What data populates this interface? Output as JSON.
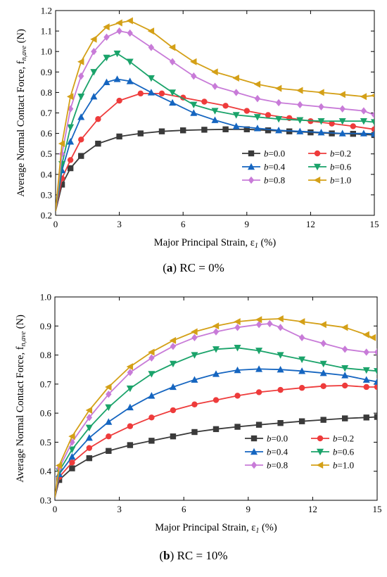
{
  "figure": {
    "panels": [
      {
        "letter": "a",
        "caption_text": "RC = 0%",
        "ylabel": "Average Normal Contact Force, f",
        "ylabel_sub": "n,ave",
        "ylabel_unit": "(N)",
        "xlabel": "Major Principal Strain, ε",
        "xlabel_sub": "1",
        "xlabel_unit": "(%)"
      },
      {
        "letter": "b",
        "caption_text": "RC = 10%",
        "ylabel": "Average Normal Contact Force, f",
        "ylabel_sub": "n,ave",
        "ylabel_unit": "(N)",
        "xlabel": "Major Principal Strain, ε",
        "xlabel_sub": "1",
        "xlabel_unit": "(%)"
      }
    ]
  },
  "chart_data": [
    {
      "type": "line",
      "panel": "a",
      "xlim": [
        0,
        15
      ],
      "ylim": [
        0.2,
        1.2
      ],
      "xticks": [
        "0",
        "3",
        "6",
        "9",
        "12",
        "15"
      ],
      "yticks": [
        "0.2",
        "0.3",
        "0.4",
        "0.5",
        "0.6",
        "0.7",
        "0.8",
        "0.9",
        "1.0",
        "1.1",
        "1.2"
      ],
      "legend_position": "bottom-right",
      "series": [
        {
          "name": "b=0.0",
          "color": "#3a3a3a",
          "marker": "square",
          "x": [
            0,
            0.3,
            0.7,
            1.2,
            2,
            3,
            4,
            5,
            6,
            7,
            8,
            9,
            10,
            11,
            12,
            13,
            14,
            15
          ],
          "y": [
            0.22,
            0.35,
            0.43,
            0.49,
            0.55,
            0.585,
            0.6,
            0.61,
            0.615,
            0.618,
            0.62,
            0.62,
            0.615,
            0.61,
            0.605,
            0.6,
            0.598,
            0.592
          ]
        },
        {
          "name": "b=0.2",
          "color": "#ee3b3b",
          "marker": "circle",
          "x": [
            0,
            0.3,
            0.7,
            1.2,
            2,
            3,
            4,
            5,
            6,
            7,
            8,
            9,
            10,
            11,
            12,
            13,
            14,
            15
          ],
          "y": [
            0.22,
            0.38,
            0.47,
            0.57,
            0.67,
            0.76,
            0.795,
            0.795,
            0.775,
            0.755,
            0.735,
            0.71,
            0.69,
            0.675,
            0.66,
            0.648,
            0.635,
            0.62
          ]
        },
        {
          "name": "b=0.4",
          "color": "#1565c0",
          "marker": "triangle-up",
          "x": [
            0,
            0.3,
            0.7,
            1.2,
            1.8,
            2.4,
            2.9,
            3.5,
            4.5,
            5.5,
            6.5,
            7.5,
            8.5,
            9.5,
            10.5,
            11.5,
            12.5,
            13.5,
            14.5,
            15
          ],
          "y": [
            0.22,
            0.42,
            0.56,
            0.68,
            0.78,
            0.85,
            0.865,
            0.855,
            0.8,
            0.75,
            0.7,
            0.665,
            0.635,
            0.625,
            0.615,
            0.61,
            0.605,
            0.6,
            0.6,
            0.598
          ]
        },
        {
          "name": "b=0.6",
          "color": "#1aa36a",
          "marker": "triangle-down",
          "x": [
            0,
            0.3,
            0.7,
            1.2,
            1.8,
            2.4,
            2.9,
            3.5,
            4.5,
            5.5,
            6.5,
            7.5,
            8.5,
            9.5,
            10.5,
            11.5,
            12.5,
            13.5,
            14.5,
            15
          ],
          "y": [
            0.22,
            0.45,
            0.63,
            0.78,
            0.9,
            0.97,
            0.99,
            0.95,
            0.87,
            0.8,
            0.74,
            0.71,
            0.69,
            0.68,
            0.67,
            0.665,
            0.66,
            0.66,
            0.66,
            0.655
          ]
        },
        {
          "name": "b=0.8",
          "color": "#c87bd8",
          "marker": "diamond",
          "x": [
            0,
            0.3,
            0.7,
            1.2,
            1.8,
            2.4,
            3.0,
            3.5,
            4.5,
            5.5,
            6.5,
            7.5,
            8.5,
            9.5,
            10.5,
            11.5,
            12.5,
            13.5,
            14.5,
            15
          ],
          "y": [
            0.22,
            0.5,
            0.72,
            0.88,
            1.0,
            1.07,
            1.1,
            1.09,
            1.02,
            0.95,
            0.88,
            0.83,
            0.8,
            0.77,
            0.75,
            0.74,
            0.73,
            0.72,
            0.71,
            0.69
          ]
        },
        {
          "name": "b=1.0",
          "color": "#d4a017",
          "marker": "triangle-left",
          "x": [
            0,
            0.3,
            0.7,
            1.2,
            1.8,
            2.4,
            3.0,
            3.5,
            4.5,
            5.5,
            6.5,
            7.5,
            8.5,
            9.5,
            10.5,
            11.5,
            12.5,
            13.5,
            14.5,
            15
          ],
          "y": [
            0.22,
            0.55,
            0.78,
            0.95,
            1.06,
            1.12,
            1.14,
            1.15,
            1.1,
            1.02,
            0.95,
            0.9,
            0.87,
            0.84,
            0.82,
            0.81,
            0.8,
            0.79,
            0.78,
            0.785
          ]
        }
      ]
    },
    {
      "type": "line",
      "panel": "b",
      "xlim": [
        0,
        15
      ],
      "ylim": [
        0.3,
        1.0
      ],
      "xticks": [
        "0",
        "3",
        "6",
        "9",
        "12",
        "15"
      ],
      "yticks": [
        "0.3",
        "0.4",
        "0.5",
        "0.6",
        "0.7",
        "0.8",
        "0.9",
        "1.0"
      ],
      "legend_position": "bottom-right",
      "series": [
        {
          "name": "b=0.0",
          "color": "#3a3a3a",
          "marker": "square",
          "x": [
            0,
            0.2,
            0.8,
            1.6,
            2.5,
            3.5,
            4.5,
            5.5,
            6.5,
            7.5,
            8.5,
            9.5,
            10.5,
            11.5,
            12.5,
            13.5,
            14.5,
            15
          ],
          "y": [
            0.31,
            0.37,
            0.41,
            0.445,
            0.47,
            0.49,
            0.505,
            0.52,
            0.535,
            0.545,
            0.553,
            0.56,
            0.566,
            0.572,
            0.577,
            0.582,
            0.585,
            0.587
          ]
        },
        {
          "name": "b=0.2",
          "color": "#ee3b3b",
          "marker": "circle",
          "x": [
            0,
            0.2,
            0.8,
            1.6,
            2.5,
            3.5,
            4.5,
            5.5,
            6.5,
            7.5,
            8.5,
            9.5,
            10.5,
            11.5,
            12.5,
            13.5,
            14.5,
            15
          ],
          "y": [
            0.31,
            0.38,
            0.43,
            0.48,
            0.52,
            0.555,
            0.585,
            0.61,
            0.63,
            0.645,
            0.66,
            0.672,
            0.68,
            0.687,
            0.693,
            0.695,
            0.69,
            0.69
          ]
        },
        {
          "name": "b=0.4",
          "color": "#1565c0",
          "marker": "triangle-up",
          "x": [
            0,
            0.2,
            0.8,
            1.6,
            2.5,
            3.5,
            4.5,
            5.5,
            6.5,
            7.5,
            8.5,
            9.5,
            10.5,
            11.5,
            12.5,
            13.5,
            14.5,
            15
          ],
          "y": [
            0.31,
            0.39,
            0.45,
            0.515,
            0.57,
            0.62,
            0.66,
            0.69,
            0.715,
            0.735,
            0.748,
            0.752,
            0.75,
            0.745,
            0.738,
            0.73,
            0.715,
            0.708
          ]
        },
        {
          "name": "b=0.6",
          "color": "#1aa36a",
          "marker": "triangle-down",
          "x": [
            0,
            0.2,
            0.8,
            1.6,
            2.5,
            3.5,
            4.5,
            5.5,
            6.5,
            7.5,
            8.5,
            9.5,
            10.5,
            11.5,
            12.5,
            13.5,
            14.5,
            15
          ],
          "y": [
            0.31,
            0.4,
            0.475,
            0.55,
            0.62,
            0.685,
            0.735,
            0.77,
            0.8,
            0.82,
            0.825,
            0.815,
            0.8,
            0.785,
            0.77,
            0.755,
            0.748,
            0.745
          ]
        },
        {
          "name": "b=0.8",
          "color": "#c87bd8",
          "marker": "diamond",
          "x": [
            0,
            0.2,
            0.8,
            1.6,
            2.5,
            3.5,
            4.5,
            5.5,
            6.5,
            7.5,
            8.5,
            9.5,
            10.0,
            10.5,
            11.5,
            12.5,
            13.5,
            14.5,
            15
          ],
          "y": [
            0.31,
            0.41,
            0.5,
            0.585,
            0.665,
            0.74,
            0.79,
            0.83,
            0.86,
            0.88,
            0.895,
            0.905,
            0.908,
            0.895,
            0.86,
            0.84,
            0.82,
            0.81,
            0.81
          ]
        },
        {
          "name": "b=1.0",
          "color": "#d4a017",
          "marker": "triangle-left",
          "x": [
            0,
            0.2,
            0.8,
            1.6,
            2.5,
            3.5,
            4.5,
            5.5,
            6.5,
            7.5,
            8.5,
            9.5,
            10.5,
            11.5,
            12.5,
            13.5,
            14.5,
            14.8
          ],
          "y": [
            0.31,
            0.42,
            0.52,
            0.61,
            0.69,
            0.76,
            0.81,
            0.85,
            0.88,
            0.9,
            0.915,
            0.922,
            0.925,
            0.915,
            0.905,
            0.895,
            0.87,
            0.86
          ]
        }
      ]
    }
  ]
}
